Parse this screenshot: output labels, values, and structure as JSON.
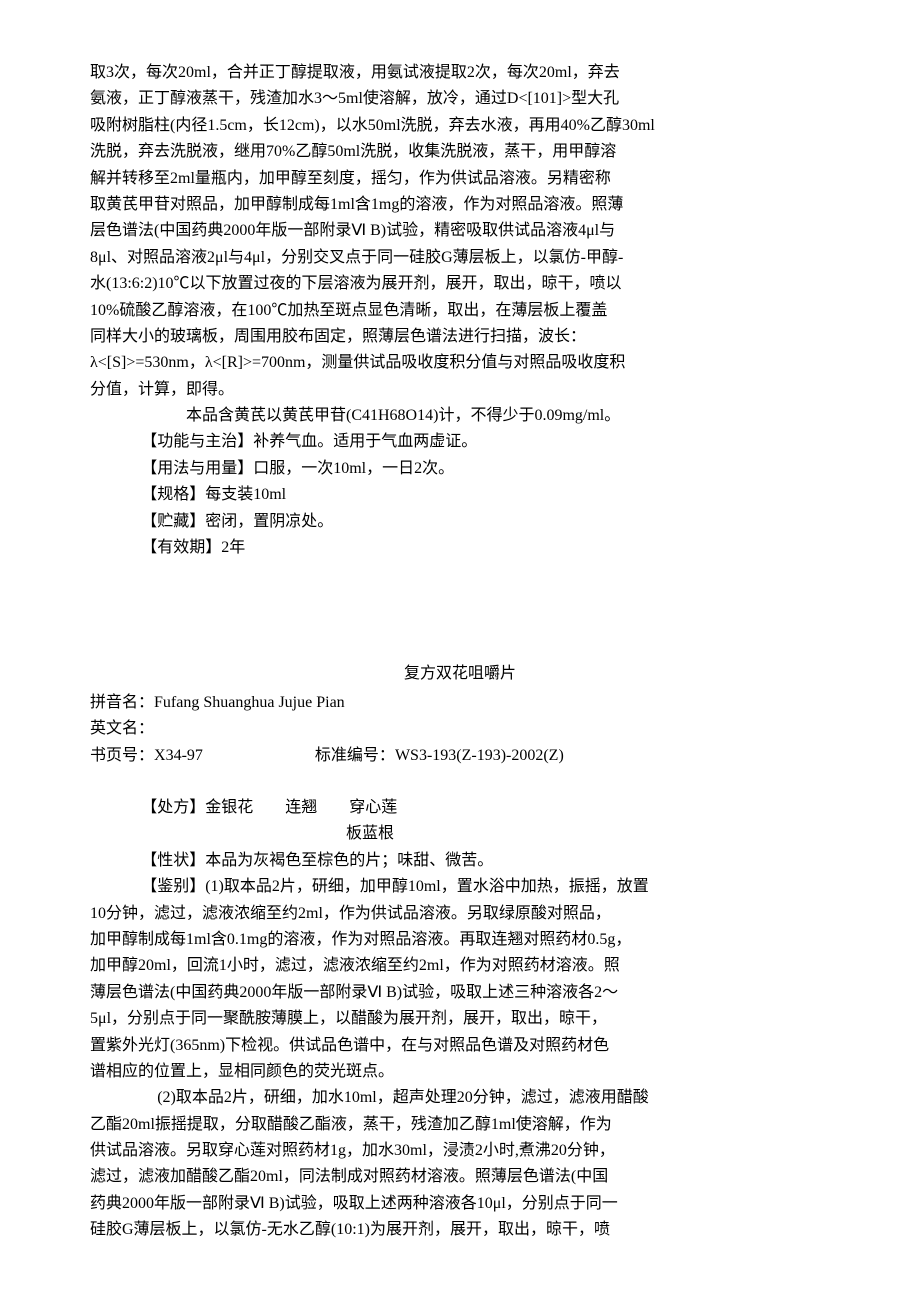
{
  "doc1": {
    "p1": "取3次，每次20ml，合并正丁醇提取液，用氨试液提取2次，每次20ml，弃去",
    "p2": "氨液，正丁醇液蒸干，残渣加水3～5ml使溶解，放冷，通过D<[101]>型大孔",
    "p3": "吸附树脂柱(内径1.5cm，长12cm)，以水50ml洗脱，弃去水液，再用40%乙醇30ml",
    "p4": "洗脱，弃去洗脱液，继用70%乙醇50ml洗脱，收集洗脱液，蒸干，用甲醇溶",
    "p5": "解并转移至2ml量瓶内，加甲醇至刻度，摇匀，作为供试品溶液。另精密称",
    "p6": "取黄芪甲苷对照品，加甲醇制成每1ml含1mg的溶液，作为对照品溶液。照薄",
    "p7": "层色谱法(中国药典2000年版一部附录Ⅵ B)试验，精密吸取供试品溶液4μl与",
    "p8": "8μl、对照品溶液2μl与4μl，分别交叉点于同一硅胶G薄层板上，以氯仿-甲醇-",
    "p9": "水(13:6:2)10℃以下放置过夜的下层溶液为展开剂，展开，取出，晾干，喷以",
    "p10": "10%硫酸乙醇溶液，在100℃加热至斑点显色清晰，取出，在薄层板上覆盖",
    "p11": "同样大小的玻璃板，周围用胶布固定，照薄层色谱法进行扫描，波长：",
    "p12": "λ<[S]>=530nm，λ<[R]>=700nm，测量供试品吸收度积分值与对照品吸收度积",
    "p13": "分值，计算，即得。",
    "p14": "本品含黄芪以黄芪甲苷(C41H68O14)计，不得少于0.09mg/ml。",
    "func_label": "【功能与主治】",
    "func_text": "补养气血。适用于气血两虚证。",
    "usage_label": "【用法与用量】",
    "usage_text": "口服，一次10ml，一日2次。",
    "spec_label": "【规格】",
    "spec_text": "每支装10ml",
    "storage_label": "【贮藏】",
    "storage_text": "密闭，置阴凉处。",
    "expiry_label": "【有效期】",
    "expiry_text": "2年"
  },
  "doc2": {
    "title": "复方双花咀嚼片",
    "pinyin_label": "拼音名：",
    "pinyin_text": "Fufang Shuanghua Jujue Pian",
    "english_label": "英文名：",
    "english_text": "",
    "page_label": "书页号：",
    "page_text": "X34-97",
    "std_label": "标准编号：",
    "std_text": "WS3-193(Z-193)-2002(Z)",
    "rx_label": "【处方】",
    "rx_line1": "金银花　　连翘　　穿心莲",
    "rx_line2": "板蓝根",
    "trait_label": "【性状】",
    "trait_text": "本品为灰褐色至棕色的片；味甜、微苦。",
    "id_label": "【鉴别】",
    "id_p1": "(1)取本品2片，研细，加甲醇10ml，置水浴中加热，振摇，放置",
    "id_p2": "10分钟，滤过，滤液浓缩至约2ml，作为供试品溶液。另取绿原酸对照品，",
    "id_p3": "加甲醇制成每1ml含0.1mg的溶液，作为对照品溶液。再取连翘对照药材0.5g，",
    "id_p4": "加甲醇20ml，回流1小时，滤过，滤液浓缩至约2ml，作为对照药材溶液。照",
    "id_p5": "薄层色谱法(中国药典2000年版一部附录Ⅵ B)试验，吸取上述三种溶液各2～",
    "id_p6": "5μl，分别点于同一聚酰胺薄膜上，以醋酸为展开剂，展开，取出，晾干，",
    "id_p7": "置紫外光灯(365nm)下检视。供试品色谱中，在与对照品色谱及对照药材色",
    "id_p8": "谱相应的位置上，显相同颜色的荧光斑点。",
    "id2_p1": "(2)取本品2片，研细，加水10ml，超声处理20分钟，滤过，滤液用醋酸",
    "id2_p2": "乙酯20ml振摇提取，分取醋酸乙酯液，蒸干，残渣加乙醇1ml使溶解，作为",
    "id2_p3": "供试品溶液。另取穿心莲对照药材1g，加水30ml，浸渍2小时,煮沸20分钟，",
    "id2_p4": "滤过，滤液加醋酸乙酯20ml，同法制成对照药材溶液。照薄层色谱法(中国",
    "id2_p5": "药典2000年版一部附录Ⅵ B)试验，吸取上述两种溶液各10μl，分别点于同一",
    "id2_p6": "硅胶G薄层板上，以氯仿-无水乙醇(10:1)为展开剂，展开，取出，晾干，喷"
  }
}
